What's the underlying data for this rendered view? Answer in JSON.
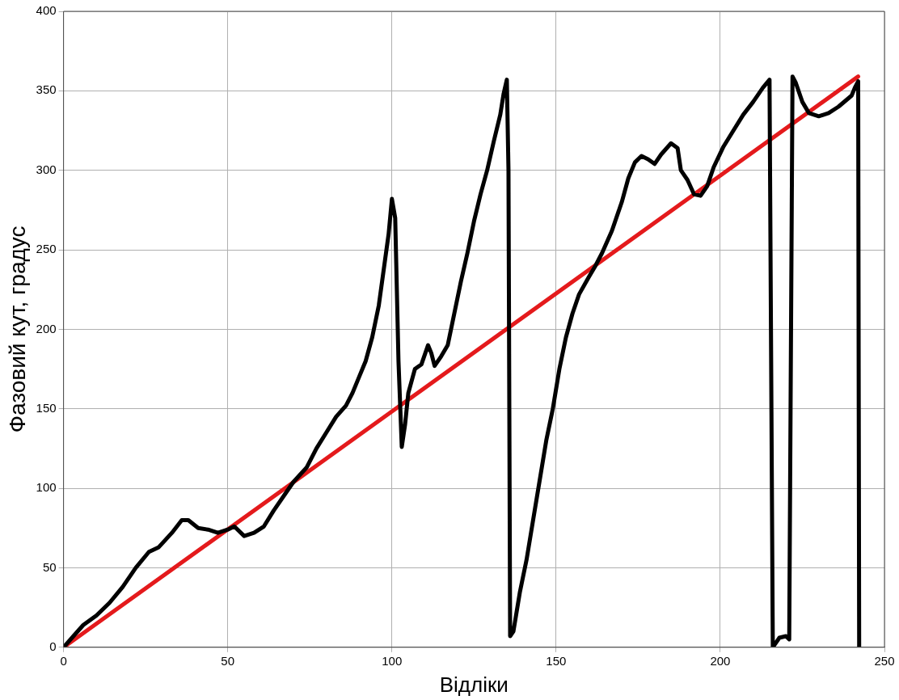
{
  "chart_data": {
    "type": "line",
    "xlabel": "Відліки",
    "ylabel": "Фазовий кут, градус",
    "xlim": [
      0,
      250
    ],
    "ylim": [
      0,
      400
    ],
    "xticks": [
      0,
      50,
      100,
      150,
      200,
      250
    ],
    "yticks": [
      0,
      50,
      100,
      150,
      200,
      250,
      300,
      350,
      400
    ],
    "grid": true,
    "legend": false,
    "marker": "none",
    "line_style": "solid",
    "series": [
      {
        "color": "#000000",
        "x": [
          0,
          3,
          6,
          10,
          14,
          18,
          22,
          26,
          29,
          33,
          36,
          38,
          41,
          44,
          47,
          50,
          52,
          55,
          58,
          61,
          64,
          68,
          70,
          74,
          77,
          80,
          83,
          86,
          88,
          90,
          92,
          94,
          96,
          97,
          99,
          100,
          101,
          102,
          103,
          104,
          105,
          107,
          109,
          111,
          112,
          113,
          115,
          117,
          119,
          121,
          123,
          125,
          127,
          129,
          131,
          133,
          134,
          135,
          135.5,
          136,
          137,
          139,
          141,
          143,
          145,
          147,
          149,
          151,
          153,
          155,
          157,
          160,
          162,
          164,
          167,
          170,
          172,
          174,
          176,
          178,
          180,
          182,
          185,
          187,
          188,
          190,
          192,
          194,
          196,
          198,
          201,
          204,
          207,
          210,
          213,
          215,
          216,
          218,
          220,
          221,
          222,
          223,
          225,
          227,
          230,
          233,
          236,
          240,
          241,
          242,
          242.3
        ],
        "values": [
          0,
          7,
          14,
          20,
          28,
          38,
          50,
          60,
          63,
          72,
          80,
          80,
          75,
          74,
          72,
          74,
          76,
          70,
          72,
          76,
          86,
          98,
          104,
          113,
          125,
          135,
          145,
          152,
          160,
          170,
          180,
          195,
          215,
          230,
          260,
          282,
          270,
          180,
          126,
          140,
          160,
          175,
          178,
          190,
          185,
          177,
          183,
          190,
          210,
          230,
          248,
          268,
          285,
          300,
          318,
          335,
          348,
          357,
          300,
          7,
          10,
          35,
          55,
          80,
          105,
          130,
          150,
          175,
          195,
          210,
          222,
          233,
          240,
          248,
          262,
          280,
          295,
          305,
          309,
          307,
          304,
          310,
          317,
          314,
          300,
          294,
          285,
          284,
          290,
          302,
          315,
          325,
          335,
          343,
          352,
          357,
          0,
          6,
          7,
          5,
          359,
          355,
          343,
          336,
          334,
          336,
          340,
          347,
          352,
          356,
          0
        ]
      },
      {
        "color": "#e41a1c",
        "x": [
          0,
          242
        ],
        "values": [
          0,
          359
        ]
      }
    ]
  }
}
